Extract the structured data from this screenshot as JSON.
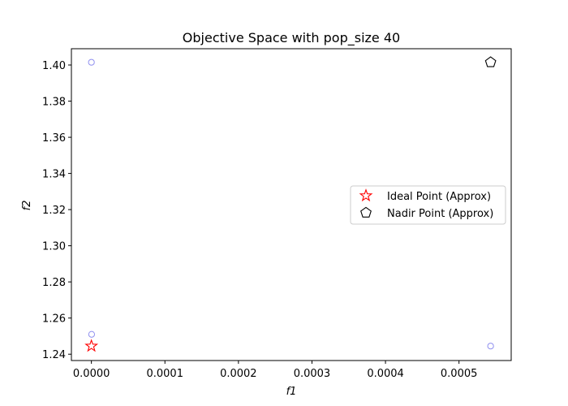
{
  "chart_data": {
    "type": "scatter",
    "title": "Objective Space with pop_size 40",
    "xlabel": "f1",
    "ylabel": "f2",
    "xlim": [
      -2.72e-05,
      0.000571
    ],
    "ylim": [
      1.2365,
      1.409
    ],
    "xticks": [
      0.0,
      0.0001,
      0.0002,
      0.0003,
      0.0004,
      0.0005
    ],
    "xtick_labels": [
      "0.0000",
      "0.0001",
      "0.0002",
      "0.0003",
      "0.0004",
      "0.0005"
    ],
    "yticks": [
      1.24,
      1.26,
      1.28,
      1.3,
      1.32,
      1.34,
      1.36,
      1.38,
      1.4
    ],
    "ytick_labels": [
      "1.24",
      "1.26",
      "1.28",
      "1.30",
      "1.32",
      "1.34",
      "1.36",
      "1.38",
      "1.40"
    ],
    "grid": false,
    "legend_position": "center-right",
    "series": [
      {
        "marker": "circle",
        "color": "#8f8fef",
        "points": [
          {
            "x": 0.0,
            "y": 1.4015
          },
          {
            "x": 3e-07,
            "y": 1.251
          },
          {
            "x": 0.000543,
            "y": 1.2445
          }
        ]
      },
      {
        "name": "Ideal Point (Approx)",
        "marker": "star",
        "color": "#ff0000",
        "points": [
          {
            "x": 0.0,
            "y": 1.2445
          }
        ]
      },
      {
        "name": "Nadir Point (Approx)",
        "marker": "pentagon",
        "color": "#000000",
        "points": [
          {
            "x": 0.000543,
            "y": 1.4015
          }
        ]
      }
    ]
  }
}
